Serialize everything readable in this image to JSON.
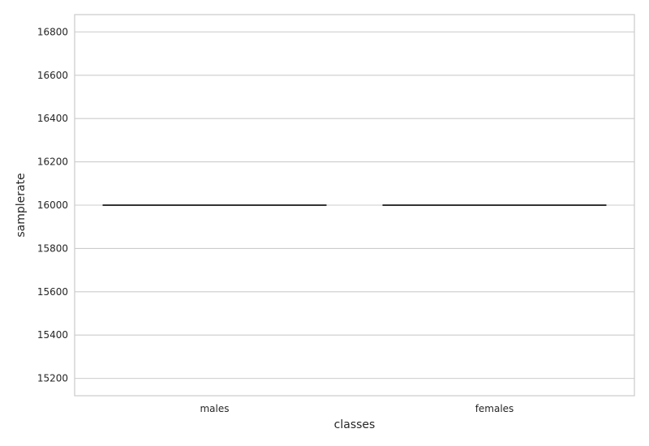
{
  "chart_data": {
    "type": "box",
    "xlabel": "classes",
    "ylabel": "samplerate",
    "categories": [
      "males",
      "females"
    ],
    "series": [
      {
        "category": "males",
        "min": 16000,
        "q1": 16000,
        "median": 16000,
        "q3": 16000,
        "max": 16000
      },
      {
        "category": "females",
        "min": 16000,
        "q1": 16000,
        "median": 16000,
        "q3": 16000,
        "max": 16000
      }
    ],
    "y_ticks": [
      15200,
      15400,
      15600,
      15800,
      16000,
      16200,
      16400,
      16600,
      16800
    ],
    "ylim": [
      15120,
      16880
    ],
    "grid": "horizontal",
    "colors": {
      "grid": "#cccccc",
      "frame": "#cccccc",
      "median": "#333333",
      "text": "#262626"
    }
  }
}
